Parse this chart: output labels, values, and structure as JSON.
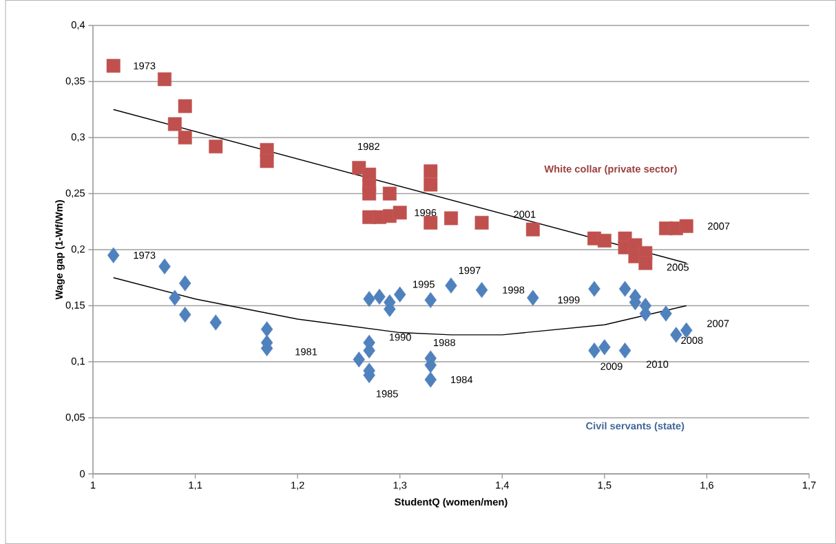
{
  "chart_data": {
    "type": "scatter",
    "xlabel": "StudentQ (women/men)",
    "ylabel": "Wage gap (1-Wf/Wm)",
    "xlim": [
      1,
      1.7
    ],
    "ylim": [
      0,
      0.4
    ],
    "xticks": [
      1,
      {
        "value": 1.1,
        "label": "1,1"
      },
      {
        "value": 1.2,
        "label": "1,2"
      },
      {
        "value": 1.3,
        "label": "1,3"
      },
      {
        "value": 1.4,
        "label": "1,4"
      },
      {
        "value": 1.5,
        "label": "1,5"
      },
      {
        "value": 1.6,
        "label": "1,6"
      },
      {
        "value": 1.7,
        "label": "1,7"
      }
    ],
    "yticks": [
      0,
      {
        "value": 0.05,
        "label": "0,05"
      },
      {
        "value": 0.1,
        "label": "0,1"
      },
      {
        "value": 0.15,
        "label": "0,15"
      },
      {
        "value": 0.2,
        "label": "0,2"
      },
      {
        "value": 0.25,
        "label": "0,25"
      },
      {
        "value": 0.3,
        "label": "0,3"
      },
      {
        "value": 0.35,
        "label": "0,35"
      },
      {
        "value": 0.4,
        "label": "0,4"
      }
    ],
    "grid": "y",
    "legend": false,
    "series": [
      {
        "name": "White collar (private sector)",
        "marker": "square",
        "color": "#c0504d",
        "x": [
          1.02,
          1.07,
          1.08,
          1.09,
          1.09,
          1.12,
          1.17,
          1.17,
          1.26,
          1.27,
          1.27,
          1.27,
          1.27,
          1.28,
          1.29,
          1.29,
          1.3,
          1.33,
          1.33,
          1.33,
          1.35,
          1.38,
          1.43,
          1.49,
          1.5,
          1.52,
          1.52,
          1.53,
          1.53,
          1.54,
          1.54,
          1.56,
          1.57,
          1.58
        ],
        "values": [
          0.364,
          0.352,
          0.312,
          0.328,
          0.3,
          0.292,
          0.289,
          0.279,
          0.273,
          0.267,
          0.257,
          0.25,
          0.229,
          0.229,
          0.23,
          0.25,
          0.233,
          0.27,
          0.258,
          0.224,
          0.228,
          0.224,
          0.218,
          0.21,
          0.208,
          0.21,
          0.202,
          0.204,
          0.194,
          0.197,
          0.188,
          0.219,
          0.219,
          0.221
        ]
      },
      {
        "name": "Civil servants (state)",
        "marker": "diamond",
        "color": "#4f81bd",
        "x": [
          1.02,
          1.07,
          1.08,
          1.09,
          1.09,
          1.12,
          1.17,
          1.17,
          1.17,
          1.26,
          1.27,
          1.27,
          1.27,
          1.27,
          1.27,
          1.28,
          1.29,
          1.29,
          1.3,
          1.33,
          1.33,
          1.33,
          1.33,
          1.35,
          1.38,
          1.43,
          1.49,
          1.49,
          1.5,
          1.52,
          1.52,
          1.53,
          1.53,
          1.54,
          1.54,
          1.56,
          1.57,
          1.58
        ],
        "values": [
          0.195,
          0.185,
          0.157,
          0.17,
          0.142,
          0.135,
          0.129,
          0.117,
          0.112,
          0.102,
          0.156,
          0.117,
          0.11,
          0.092,
          0.088,
          0.158,
          0.153,
          0.147,
          0.16,
          0.155,
          0.103,
          0.097,
          0.084,
          0.168,
          0.164,
          0.157,
          0.165,
          0.11,
          0.113,
          0.165,
          0.11,
          0.158,
          0.153,
          0.15,
          0.143,
          0.143,
          0.124,
          0.128
        ]
      },
      {
        "type": "line",
        "marker": "none",
        "color": "#000000",
        "x": [
          1.02,
          1.58
        ],
        "values": [
          0.325,
          0.188
        ]
      },
      {
        "type": "line",
        "marker": "none",
        "color": "#000000",
        "x": [
          1.02,
          1.1,
          1.2,
          1.3,
          1.35,
          1.4,
          1.5,
          1.58
        ],
        "values": [
          0.175,
          0.156,
          0.138,
          0.126,
          0.124,
          0.124,
          0.133,
          0.15
        ]
      }
    ],
    "annotations": [
      {
        "text": "1973",
        "x": 1.02,
        "y": 0.364
      },
      {
        "text": "1982",
        "x": 1.26,
        "y": 0.273
      },
      {
        "text": "1996",
        "x": 1.3,
        "y": 0.233
      },
      {
        "text": "2001",
        "x": 1.43,
        "y": 0.218
      },
      {
        "text": "2005",
        "x": 1.54,
        "y": 0.188
      },
      {
        "text": "2007",
        "x": 1.58,
        "y": 0.221
      },
      {
        "text": "1973",
        "x": 1.02,
        "y": 0.195
      },
      {
        "text": "1981",
        "x": 1.17,
        "y": 0.112
      },
      {
        "text": "1985",
        "x": 1.27,
        "y": 0.088
      },
      {
        "text": "1990",
        "x": 1.27,
        "y": 0.117
      },
      {
        "text": "1988",
        "x": 1.33,
        "y": 0.103
      },
      {
        "text": "1984",
        "x": 1.33,
        "y": 0.084
      },
      {
        "text": "1995",
        "x": 1.33,
        "y": 0.155
      },
      {
        "text": "1997",
        "x": 1.35,
        "y": 0.168
      },
      {
        "text": "1998",
        "x": 1.38,
        "y": 0.164
      },
      {
        "text": "1999",
        "x": 1.43,
        "y": 0.157
      },
      {
        "text": "2009",
        "x": 1.49,
        "y": 0.11
      },
      {
        "text": "2010",
        "x": 1.52,
        "y": 0.11
      },
      {
        "text": "2007",
        "x": 1.58,
        "y": 0.128
      },
      {
        "text": "2008",
        "x": 1.57,
        "y": 0.124
      }
    ]
  }
}
